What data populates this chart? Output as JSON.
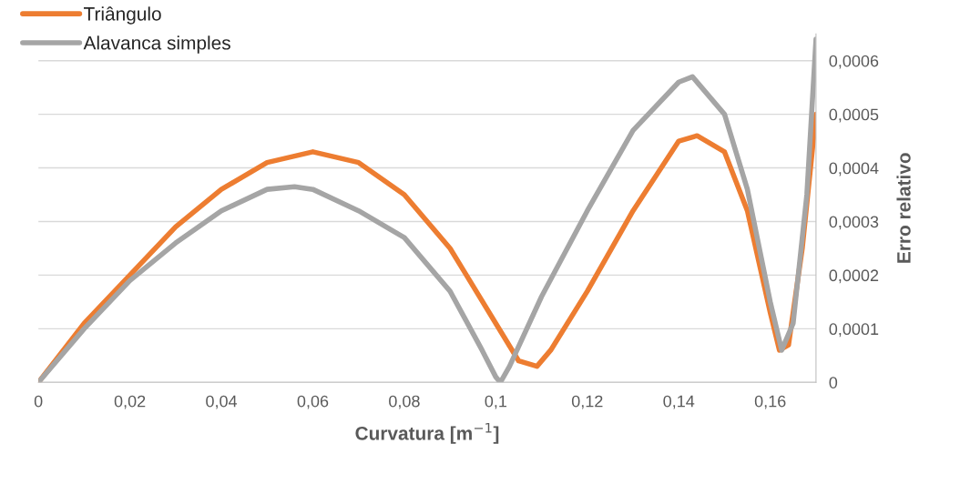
{
  "chart_data": {
    "type": "line",
    "xlabel": "Curvatura [m$^{−1}$]",
    "ylabel": "Erro relativo",
    "xlim": [
      0,
      0.17
    ],
    "ylim": [
      0,
      0.00065
    ],
    "xticks": [
      0,
      {
        "value": 0.02,
        "label": "0,02"
      },
      {
        "value": 0.04,
        "label": "0,04"
      },
      {
        "value": 0.06,
        "label": "0,06"
      },
      {
        "value": 0.08,
        "label": "0,08"
      },
      {
        "value": 0.1,
        "label": "0,1"
      },
      {
        "value": 0.12,
        "label": "0,12"
      },
      {
        "value": 0.14,
        "label": "0,14"
      },
      {
        "value": 0.16,
        "label": "0,16"
      }
    ],
    "yticks": [
      0,
      {
        "value": 0.0001,
        "label": "0,0001"
      },
      {
        "value": 0.0002,
        "label": "0,0002"
      },
      {
        "value": 0.0003,
        "label": "0,0003"
      },
      {
        "value": 0.0004,
        "label": "0,0004"
      },
      {
        "value": 0.0005,
        "label": "0,0005"
      },
      {
        "value": 0.0006,
        "label": "0,0006"
      }
    ],
    "grid": "y",
    "legend": "top left",
    "marker": "none",
    "line_style": "solid",
    "series": [
      {
        "name": "Triângulo",
        "color": "#ed7d31",
        "x": [
          0,
          0.01,
          0.02,
          0.03,
          0.04,
          0.05,
          0.06,
          0.07,
          0.08,
          0.09,
          0.1,
          0.105,
          0.109,
          0.112,
          0.12,
          0.13,
          0.14,
          0.144,
          0.15,
          0.155,
          0.16,
          0.162,
          0.164,
          0.167,
          0.17
        ],
        "values": [
          0,
          0.00011,
          0.0002,
          0.00029,
          0.00036,
          0.00041,
          0.00043,
          0.00041,
          0.00035,
          0.00025,
          0.00011,
          4e-05,
          3e-05,
          6e-05,
          0.00017,
          0.00032,
          0.00045,
          0.00046,
          0.00043,
          0.00032,
          0.00013,
          6e-05,
          7e-05,
          0.00025,
          0.0005
        ]
      },
      {
        "name": "Alavanca simples",
        "color": "#a5a5a5",
        "x": [
          0,
          0.01,
          0.02,
          0.03,
          0.04,
          0.05,
          0.056,
          0.06,
          0.07,
          0.08,
          0.09,
          0.097,
          0.1,
          0.101,
          0.103,
          0.11,
          0.12,
          0.13,
          0.14,
          0.143,
          0.15,
          0.155,
          0.16,
          0.1625,
          0.165,
          0.168,
          0.17
        ],
        "values": [
          0,
          0.0001,
          0.00019,
          0.00026,
          0.00032,
          0.00036,
          0.000365,
          0.00036,
          0.00032,
          0.00027,
          0.00017,
          6e-05,
          1e-05,
          0,
          3e-05,
          0.00016,
          0.00032,
          0.00047,
          0.00056,
          0.00057,
          0.0005,
          0.00036,
          0.00015,
          6e-05,
          0.00011,
          0.00035,
          0.00064
        ]
      }
    ]
  }
}
